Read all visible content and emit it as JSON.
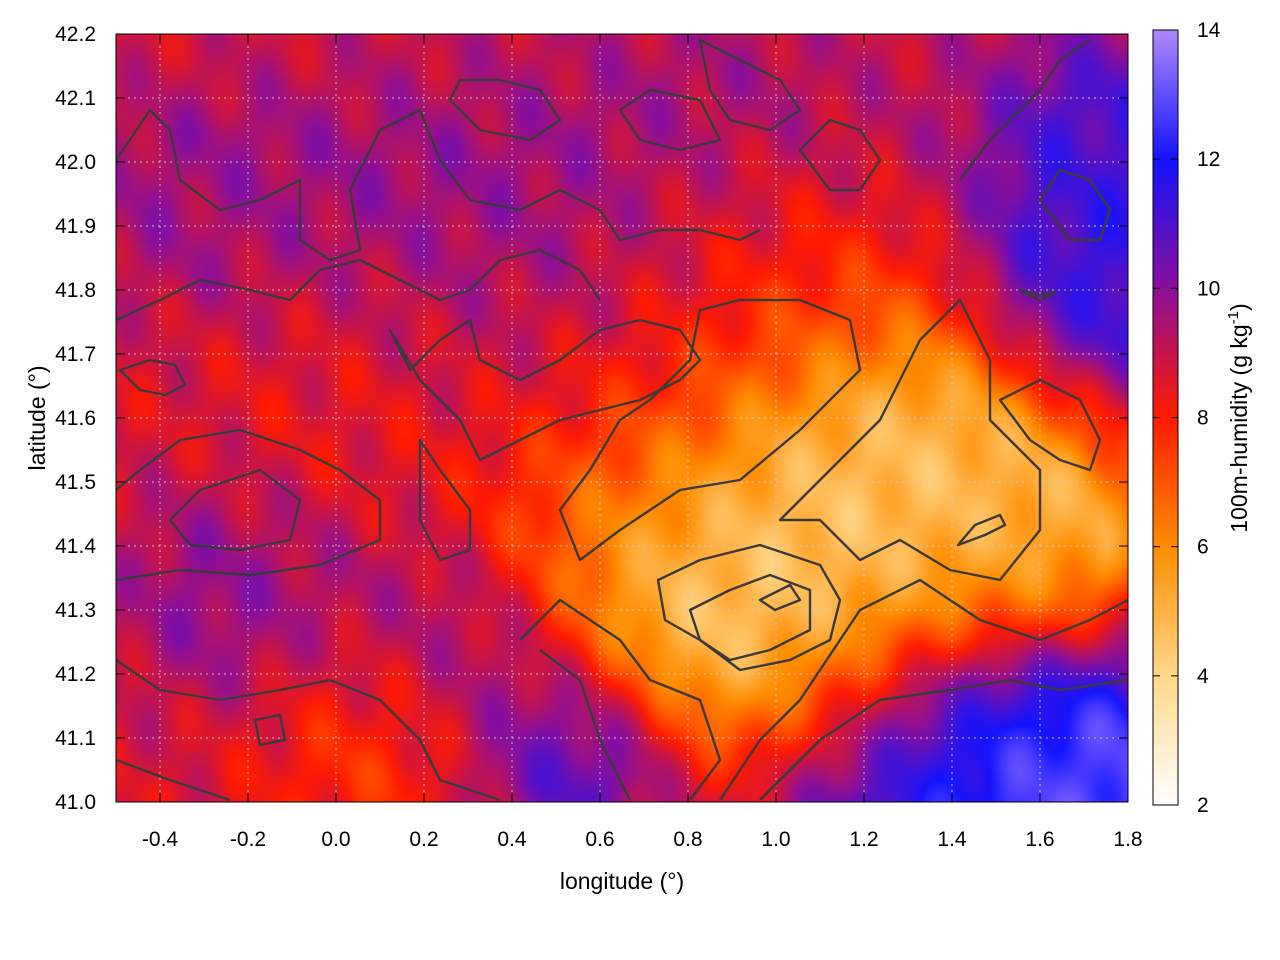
{
  "chart_data": {
    "type": "heatmap",
    "xlabel": "longitude (°)",
    "ylabel": "latitude (°)",
    "colorbar_label": "100m-humidity (g kg",
    "colorbar_label_sup": "-1",
    "colorbar_label_end": ")",
    "xlim": [
      -0.5,
      1.8
    ],
    "ylim": [
      41.0,
      42.2
    ],
    "clim": [
      2,
      14
    ],
    "x_ticks": [
      -0.4,
      -0.2,
      0.0,
      0.2,
      0.4,
      0.6,
      0.8,
      1.0,
      1.2,
      1.4,
      1.6,
      1.8
    ],
    "x_tick_labels": [
      "-0.4",
      "-0.2",
      "0.0",
      "0.2",
      "0.4",
      "0.6",
      "0.8",
      "1.0",
      "1.2",
      "1.4",
      "1.6",
      "1.8"
    ],
    "y_ticks": [
      41.0,
      41.1,
      41.2,
      41.3,
      41.4,
      41.5,
      41.6,
      41.7,
      41.8,
      41.9,
      42.0,
      42.1,
      42.2
    ],
    "y_tick_labels": [
      "41.0",
      "41.1",
      "41.2",
      "41.3",
      "41.4",
      "41.5",
      "41.6",
      "41.7",
      "41.8",
      "41.9",
      "42.0",
      "42.1",
      "42.2"
    ],
    "c_ticks": [
      2,
      4,
      6,
      8,
      10,
      12,
      14
    ],
    "c_tick_labels": [
      "2",
      "4",
      "6",
      "8",
      "10",
      "12",
      "14"
    ],
    "colormap": [
      {
        "value": 2,
        "color": "#ffffff"
      },
      {
        "value": 4,
        "color": "#ffd88a"
      },
      {
        "value": 6,
        "color": "#ff8c00"
      },
      {
        "value": 8,
        "color": "#ff1a00"
      },
      {
        "value": 10,
        "color": "#8a0f9a"
      },
      {
        "value": 12,
        "color": "#1414ff"
      },
      {
        "value": 14,
        "color": "#b088ff"
      }
    ],
    "grid": true,
    "contours": true,
    "field_features": [
      {
        "lon": 0.95,
        "lat": 41.3,
        "value": 3.0,
        "spread": 0.28
      },
      {
        "lon": 1.3,
        "lat": 41.52,
        "value": 4.5,
        "spread": 0.26
      },
      {
        "lon": 1.2,
        "lat": 41.45,
        "value": 4.8,
        "spread": 0.2
      },
      {
        "lon": 0.7,
        "lat": 41.45,
        "value": 5.5,
        "spread": 0.22
      },
      {
        "lon": 1.6,
        "lat": 41.4,
        "value": 5.0,
        "spread": 0.18
      },
      {
        "lon": 1.35,
        "lat": 41.05,
        "value": 12.2,
        "spread": 0.3
      },
      {
        "lon": 1.65,
        "lat": 41.05,
        "value": 13.2,
        "spread": 0.2
      },
      {
        "lon": 0.55,
        "lat": 41.08,
        "value": 11.8,
        "spread": 0.16
      },
      {
        "lon": 1.75,
        "lat": 41.8,
        "value": 11.8,
        "spread": 0.2
      },
      {
        "lon": 1.75,
        "lat": 42.05,
        "value": 11.0,
        "spread": 0.22
      },
      {
        "lon": -0.2,
        "lat": 41.33,
        "value": 10.2,
        "spread": 0.22
      },
      {
        "lon": 0.3,
        "lat": 41.25,
        "value": 10.5,
        "spread": 0.18
      },
      {
        "lon": 0.2,
        "lat": 41.88,
        "value": 9.8,
        "spread": 0.35
      },
      {
        "lon": 0.9,
        "lat": 42.05,
        "value": 9.5,
        "spread": 0.3
      },
      {
        "lon": -0.35,
        "lat": 41.95,
        "value": 9.6,
        "spread": 0.2
      },
      {
        "lon": 0.6,
        "lat": 41.6,
        "value": 8.8,
        "spread": 0.25
      },
      {
        "lon": 1.05,
        "lat": 41.8,
        "value": 7.4,
        "spread": 0.22
      },
      {
        "lon": 0.0,
        "lat": 41.6,
        "value": 7.8,
        "spread": 0.25
      },
      {
        "lon": 0.1,
        "lat": 41.12,
        "value": 7.2,
        "spread": 0.2
      }
    ],
    "field_base": 8.6
  }
}
